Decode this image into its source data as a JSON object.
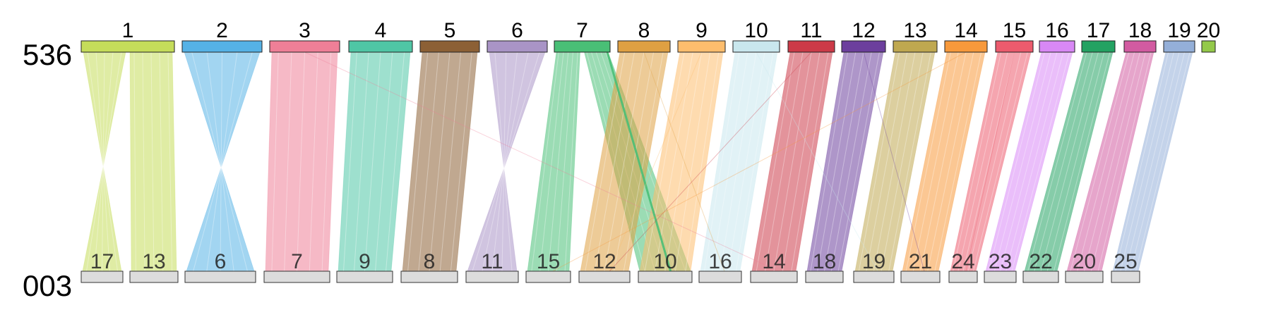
{
  "genomes": {
    "top": "536",
    "bottom": "003"
  },
  "top_chromosomes": [
    {
      "label": "1",
      "color": "#c5dc5a"
    },
    {
      "label": "2",
      "color": "#55b2e6"
    },
    {
      "label": "3",
      "color": "#ef7f97"
    },
    {
      "label": "4",
      "color": "#4fc6a5"
    },
    {
      "label": "5",
      "color": "#8c6035"
    },
    {
      "label": "6",
      "color": "#a994c6"
    },
    {
      "label": "7",
      "color": "#49bf76"
    },
    {
      "label": "8",
      "color": "#dfa042"
    },
    {
      "label": "9",
      "color": "#fdbd6d"
    },
    {
      "label": "10",
      "color": "#c9e7ee"
    },
    {
      "label": "11",
      "color": "#cc3a48"
    },
    {
      "label": "12",
      "color": "#6c3f9d"
    },
    {
      "label": "13",
      "color": "#bfa850"
    },
    {
      "label": "14",
      "color": "#f7993b"
    },
    {
      "label": "15",
      "color": "#ec5b6d"
    },
    {
      "label": "16",
      "color": "#d888f5"
    },
    {
      "label": "17",
      "color": "#23a262"
    },
    {
      "label": "18",
      "color": "#d25ba1"
    },
    {
      "label": "19",
      "color": "#94afd8"
    },
    {
      "label": "20",
      "color": "#94c94a"
    }
  ],
  "bottom_chromosomes": [
    {
      "label": "17",
      "color": "#dcdcdc"
    },
    {
      "label": "13",
      "color": "#dcdcdc"
    },
    {
      "label": "6",
      "color": "#dcdcdc"
    },
    {
      "label": "7",
      "color": "#dcdcdc"
    },
    {
      "label": "9",
      "color": "#dcdcdc"
    },
    {
      "label": "8",
      "color": "#dcdcdc"
    },
    {
      "label": "11",
      "color": "#dcdcdc"
    },
    {
      "label": "15",
      "color": "#dcdcdc"
    },
    {
      "label": "12",
      "color": "#dcdcdc"
    },
    {
      "label": "10",
      "color": "#dcdcdc"
    },
    {
      "label": "16",
      "color": "#dcdcdc"
    },
    {
      "label": "14",
      "color": "#dcdcdc"
    },
    {
      "label": "18",
      "color": "#dcdcdc"
    },
    {
      "label": "19",
      "color": "#dcdcdc"
    },
    {
      "label": "21",
      "color": "#dcdcdc"
    },
    {
      "label": "24",
      "color": "#dcdcdc"
    },
    {
      "label": "23",
      "color": "#dcdcdc"
    },
    {
      "label": "22",
      "color": "#dcdcdc"
    },
    {
      "label": "20",
      "color": "#dcdcdc"
    },
    {
      "label": "25",
      "color": "#dcdcdc"
    }
  ],
  "links": [
    {
      "from": "1",
      "to": "17",
      "inverted": true
    },
    {
      "from": "1",
      "to": "13",
      "inverted": false
    },
    {
      "from": "2",
      "to": "6",
      "inverted": true
    },
    {
      "from": "3",
      "to": "7",
      "inverted": false
    },
    {
      "from": "4",
      "to": "9",
      "inverted": false
    },
    {
      "from": "5",
      "to": "8",
      "inverted": false
    },
    {
      "from": "6",
      "to": "11",
      "inverted": true
    },
    {
      "from": "7",
      "to": "15",
      "inverted": false
    },
    {
      "from": "7",
      "to": "10",
      "inverted": false
    },
    {
      "from": "8",
      "to": "12",
      "inverted": false
    },
    {
      "from": "9",
      "to": "10",
      "inverted": false
    },
    {
      "from": "10",
      "to": "16",
      "inverted": false
    },
    {
      "from": "11",
      "to": "14",
      "inverted": false
    },
    {
      "from": "12",
      "to": "18",
      "inverted": false
    },
    {
      "from": "13",
      "to": "19",
      "inverted": false
    },
    {
      "from": "14",
      "to": "21",
      "inverted": false
    },
    {
      "from": "15",
      "to": "24",
      "inverted": false
    },
    {
      "from": "16",
      "to": "23",
      "inverted": false
    },
    {
      "from": "17",
      "to": "22",
      "inverted": false
    },
    {
      "from": "18",
      "to": "20",
      "inverted": false
    },
    {
      "from": "19",
      "to": "25",
      "inverted": false
    }
  ]
}
